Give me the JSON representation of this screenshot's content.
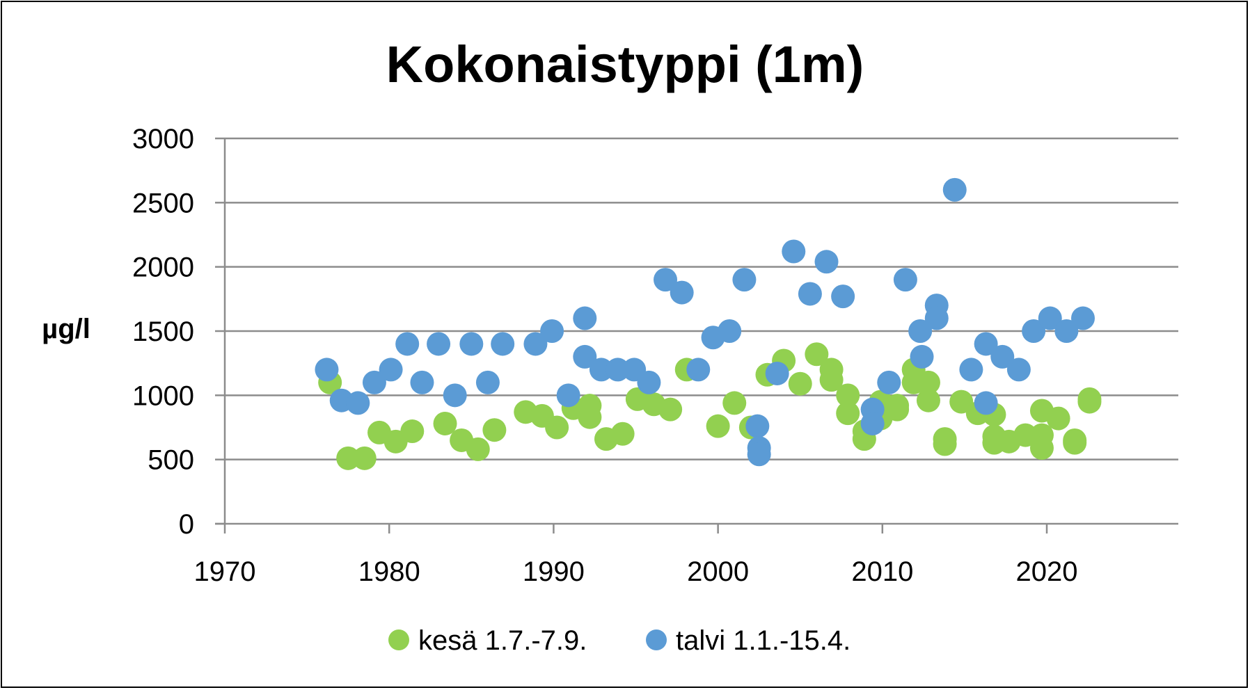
{
  "chart_data": {
    "type": "scatter",
    "title": "Kokonaistyppi (1m)",
    "xlabel": "",
    "ylabel": "µg/l",
    "xlim": [
      1970,
      2028
    ],
    "ylim": [
      0,
      3000
    ],
    "x_ticks": [
      1970,
      1980,
      1990,
      2000,
      2010,
      2020
    ],
    "y_ticks": [
      0,
      500,
      1000,
      1500,
      2000,
      2500,
      3000
    ],
    "grid": "horizontal",
    "legend_position": "bottom",
    "series": [
      {
        "name": "kesä 1.7.-7.9.",
        "color": "#92D050",
        "points": [
          [
            1976.4,
            1100
          ],
          [
            1977.5,
            510
          ],
          [
            1978.5,
            510
          ],
          [
            1979.4,
            710
          ],
          [
            1980.4,
            640
          ],
          [
            1981.4,
            720
          ],
          [
            1983.4,
            780
          ],
          [
            1984.4,
            650
          ],
          [
            1985.4,
            580
          ],
          [
            1986.4,
            730
          ],
          [
            1988.3,
            870
          ],
          [
            1989.3,
            840
          ],
          [
            1990.2,
            750
          ],
          [
            1991.2,
            900
          ],
          [
            1992.2,
            920
          ],
          [
            1992.2,
            830
          ],
          [
            1993.2,
            660
          ],
          [
            1994.2,
            700
          ],
          [
            1995.1,
            970
          ],
          [
            1996.1,
            930
          ],
          [
            1997.1,
            890
          ],
          [
            1998.1,
            1200
          ],
          [
            2000.0,
            760
          ],
          [
            2001.0,
            940
          ],
          [
            2002.0,
            750
          ],
          [
            2003.0,
            1160
          ],
          [
            2004.0,
            1270
          ],
          [
            2005.0,
            1090
          ],
          [
            2006.0,
            1320
          ],
          [
            2006.9,
            1200
          ],
          [
            2006.9,
            1120
          ],
          [
            2007.9,
            1000
          ],
          [
            2007.9,
            860
          ],
          [
            2008.9,
            660
          ],
          [
            2008.9,
            720
          ],
          [
            2009.9,
            820
          ],
          [
            2009.9,
            950
          ],
          [
            2010.9,
            920
          ],
          [
            2010.9,
            890
          ],
          [
            2011.9,
            1100
          ],
          [
            2011.9,
            1200
          ],
          [
            2012.8,
            1100
          ],
          [
            2012.8,
            960
          ],
          [
            2013.8,
            660
          ],
          [
            2013.8,
            620
          ],
          [
            2014.8,
            950
          ],
          [
            2015.8,
            860
          ],
          [
            2016.8,
            850
          ],
          [
            2016.8,
            680
          ],
          [
            2016.8,
            630
          ],
          [
            2017.7,
            640
          ],
          [
            2018.7,
            690
          ],
          [
            2019.7,
            880
          ],
          [
            2019.7,
            690
          ],
          [
            2019.7,
            590
          ],
          [
            2020.7,
            820
          ],
          [
            2021.7,
            650
          ],
          [
            2021.7,
            630
          ],
          [
            2022.6,
            970
          ],
          [
            2022.6,
            950
          ]
        ]
      },
      {
        "name": "talvi 1.1.-15.4.",
        "color": "#5B9BD5",
        "points": [
          [
            1976.2,
            1200
          ],
          [
            1977.1,
            960
          ],
          [
            1978.1,
            940
          ],
          [
            1979.1,
            1100
          ],
          [
            1980.1,
            1200
          ],
          [
            1981.1,
            1400
          ],
          [
            1982.0,
            1100
          ],
          [
            1983.0,
            1400
          ],
          [
            1984.0,
            1000
          ],
          [
            1985.0,
            1400
          ],
          [
            1986.0,
            1100
          ],
          [
            1986.9,
            1400
          ],
          [
            1988.9,
            1400
          ],
          [
            1989.9,
            1500
          ],
          [
            1990.9,
            1000
          ],
          [
            1991.9,
            1600
          ],
          [
            1991.9,
            1300
          ],
          [
            1992.9,
            1200
          ],
          [
            1993.9,
            1200
          ],
          [
            1994.9,
            1200
          ],
          [
            1995.8,
            1100
          ],
          [
            1996.8,
            1900
          ],
          [
            1997.8,
            1800
          ],
          [
            1998.8,
            1200
          ],
          [
            1999.7,
            1450
          ],
          [
            2000.7,
            1500
          ],
          [
            2001.6,
            1900
          ],
          [
            2002.4,
            760
          ],
          [
            2002.5,
            590
          ],
          [
            2002.5,
            540
          ],
          [
            2003.6,
            1170
          ],
          [
            2004.6,
            2120
          ],
          [
            2005.6,
            1790
          ],
          [
            2006.6,
            2040
          ],
          [
            2007.6,
            1770
          ],
          [
            2009.4,
            890
          ],
          [
            2009.4,
            780
          ],
          [
            2010.4,
            1100
          ],
          [
            2011.4,
            1900
          ],
          [
            2012.3,
            1500
          ],
          [
            2012.4,
            1300
          ],
          [
            2013.3,
            1700
          ],
          [
            2013.3,
            1600
          ],
          [
            2014.4,
            2600
          ],
          [
            2015.4,
            1200
          ],
          [
            2016.3,
            1400
          ],
          [
            2016.3,
            940
          ],
          [
            2017.3,
            1300
          ],
          [
            2018.3,
            1200
          ],
          [
            2019.2,
            1500
          ],
          [
            2020.2,
            1600
          ],
          [
            2021.2,
            1500
          ],
          [
            2022.2,
            1600
          ]
        ]
      }
    ]
  }
}
